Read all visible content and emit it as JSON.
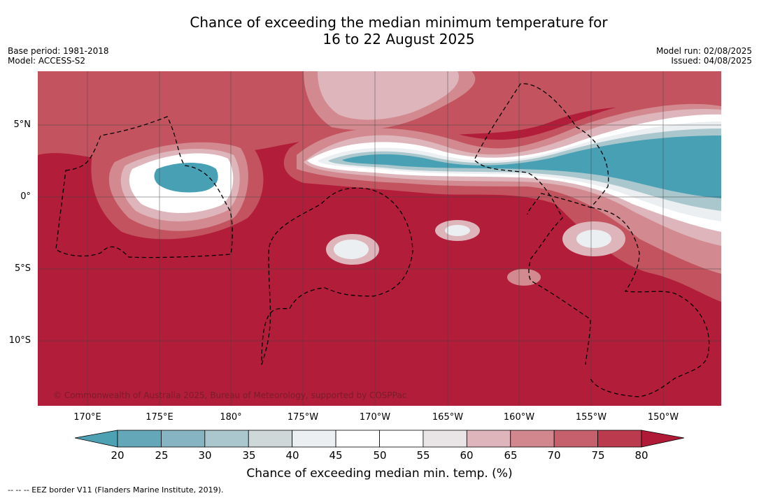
{
  "title": {
    "line1": "Chance of exceeding the median minimum temperature for",
    "line2": "16 to 22 August 2025"
  },
  "meta": {
    "base_period": "Base period: 1981-2018",
    "model": "Model: ACCESS-S2",
    "model_run": "Model run: 02/08/2025",
    "issued": "Issued: 04/08/2025"
  },
  "map": {
    "lat_labels": [
      "5°N",
      "0°",
      "5°S",
      "10°S"
    ],
    "lon_labels": [
      "170°E",
      "175°E",
      "180°",
      "175°W",
      "170°W",
      "165°W",
      "160°W",
      "155°W",
      "150°W"
    ],
    "copyright": "© Commonwealth of Australia 2025, Bureau of Meteorology, supported by COSPPac",
    "colors": {
      "extreme_high": "#b21d39",
      "high": "#c3545f",
      "mid_high": "#d28a90",
      "low": "#6aa9ba",
      "extreme_low": "#48a0b4"
    }
  },
  "colorbar": {
    "ticks": [
      "20",
      "25",
      "30",
      "35",
      "40",
      "45",
      "50",
      "55",
      "60",
      "65",
      "70",
      "75",
      "80"
    ],
    "colors": [
      "#64a7b8",
      "#86b4c3",
      "#a9c7cd",
      "#cfd8d9",
      "#ebeff1",
      "#ffffff",
      "#ffffff",
      "#e9e4e6",
      "#deb5bb",
      "#d2868d",
      "#c6606c",
      "#bb3a4e"
    ],
    "under_color": "#4ea0b3",
    "over_color": "#b01a37",
    "label": "Chance of exceeding median min. temp. (%)"
  },
  "footer": "--  --  -- EEZ border V11 (Flanders Marine Institute, 2019)."
}
